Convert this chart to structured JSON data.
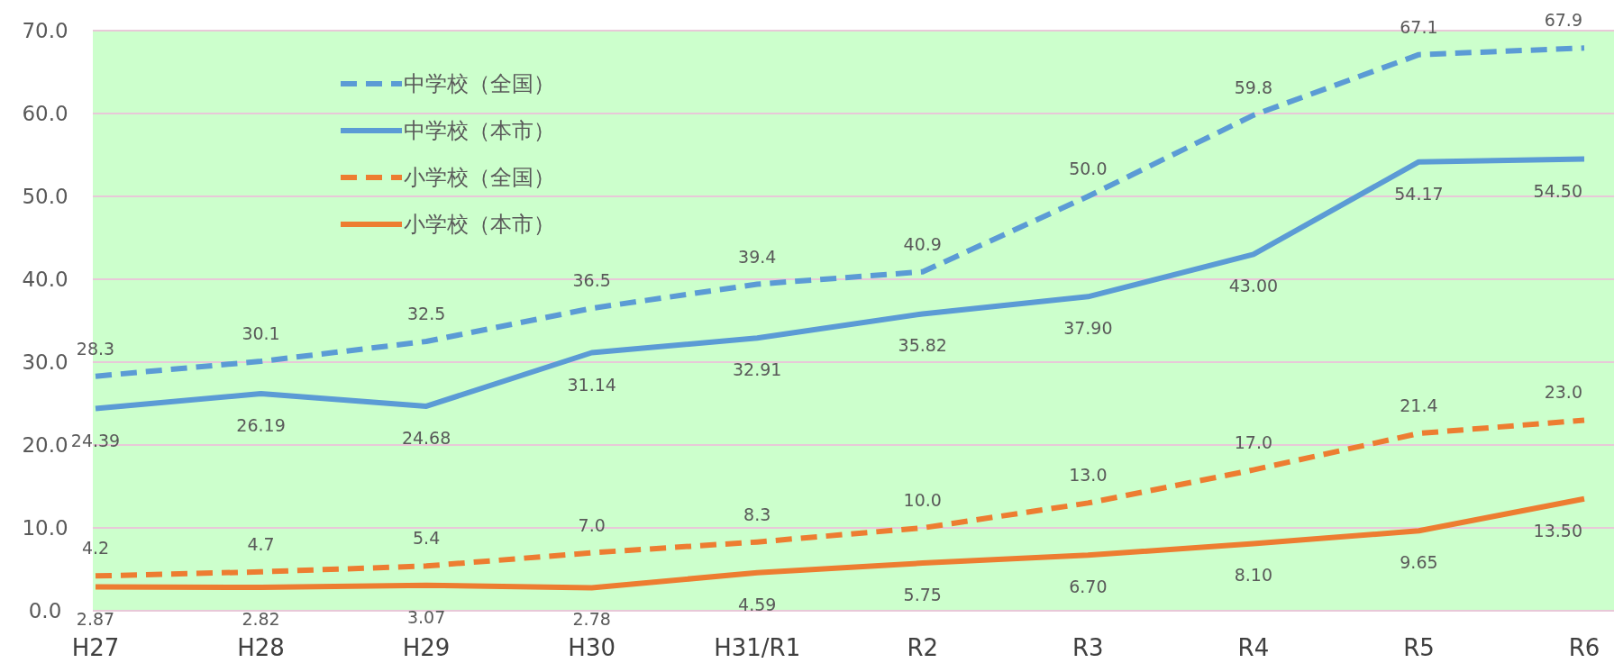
{
  "chart_data": {
    "type": "line",
    "categories": [
      "H27",
      "H28",
      "H29",
      "H30",
      "H31/R1",
      "R2",
      "R3",
      "R4",
      "R5",
      "R6"
    ],
    "series": [
      {
        "name": "中学校（全国）",
        "color": "#5b9bd5",
        "line_style": "dashed",
        "values": [
          28.3,
          30.1,
          32.5,
          36.5,
          39.4,
          40.9,
          50.0,
          59.8,
          67.1,
          67.9
        ],
        "value_labels": [
          "28.3",
          "30.1",
          "32.5",
          "36.5",
          "39.4",
          "40.9",
          "50.0",
          "59.8",
          "67.1",
          "67.9"
        ]
      },
      {
        "name": "中学校（本市）",
        "color": "#5b9bd5",
        "line_style": "solid",
        "values": [
          24.39,
          26.19,
          24.68,
          31.14,
          32.91,
          35.82,
          37.9,
          43.0,
          54.17,
          54.5
        ],
        "value_labels": [
          "24.39",
          "26.19",
          "24.68",
          "31.14",
          "32.91",
          "35.82",
          "37.90",
          "43.00",
          "54.17",
          "54.50"
        ]
      },
      {
        "name": "小学校（全国）",
        "color": "#ed7d31",
        "line_style": "dashed",
        "values": [
          4.2,
          4.7,
          5.4,
          7.0,
          8.3,
          10.0,
          13.0,
          17.0,
          21.4,
          23.0
        ],
        "value_labels": [
          "4.2",
          "4.7",
          "5.4",
          "7.0",
          "8.3",
          "10.0",
          "13.0",
          "17.0",
          "21.4",
          "23.0"
        ]
      },
      {
        "name": "小学校（本市）",
        "color": "#ed7d31",
        "line_style": "solid",
        "values": [
          2.87,
          2.82,
          3.07,
          2.78,
          4.59,
          5.75,
          6.7,
          8.1,
          9.65,
          13.5
        ],
        "value_labels": [
          "2.87",
          "2.82",
          "3.07",
          "2.78",
          "4.59",
          "5.75",
          "6.70",
          "8.10",
          "9.65",
          "13.50"
        ]
      }
    ],
    "ylim": [
      0,
      70
    ],
    "yticks": [
      {
        "value": 0,
        "label": "0.0"
      },
      {
        "value": 10,
        "label": "10.0"
      },
      {
        "value": 20,
        "label": "20.0"
      },
      {
        "value": 30,
        "label": "30.0"
      },
      {
        "value": 40,
        "label": "40.0"
      },
      {
        "value": 50,
        "label": "50.0"
      },
      {
        "value": 60,
        "label": "60.0"
      },
      {
        "value": 70,
        "label": "70.0"
      }
    ],
    "grid": "y",
    "legend": "top left"
  }
}
